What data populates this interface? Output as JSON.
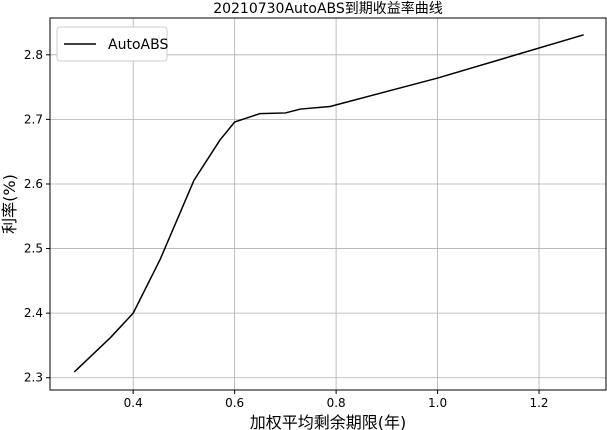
{
  "chart_data": {
    "type": "line",
    "title": "20210730AutoABS到期收益率曲线",
    "x_label": "加权平均剩余期限(年)",
    "y_label": "利率(%)",
    "x": [
      0.284,
      0.355,
      0.4,
      0.453,
      0.52,
      0.571,
      0.6,
      0.65,
      0.7,
      0.73,
      0.788,
      1.0,
      1.288
    ],
    "series": [
      {
        "name": "AutoABS",
        "color": "#000000",
        "values": [
          2.309,
          2.362,
          2.4,
          2.483,
          2.606,
          2.668,
          2.696,
          2.709,
          2.71,
          2.716,
          2.72,
          2.764,
          2.831
        ]
      }
    ],
    "xlim": [
      0.236,
      1.332
    ],
    "ylim": [
      2.281,
      2.857
    ],
    "xticks": [
      0.4,
      0.6,
      0.8,
      {
        "value": 1,
        "label": "1.0"
      },
      1.2
    ],
    "yticks": [
      2.3,
      2.4,
      2.5,
      2.6,
      2.7,
      2.8
    ],
    "grid": true,
    "legend": "upper-left"
  }
}
